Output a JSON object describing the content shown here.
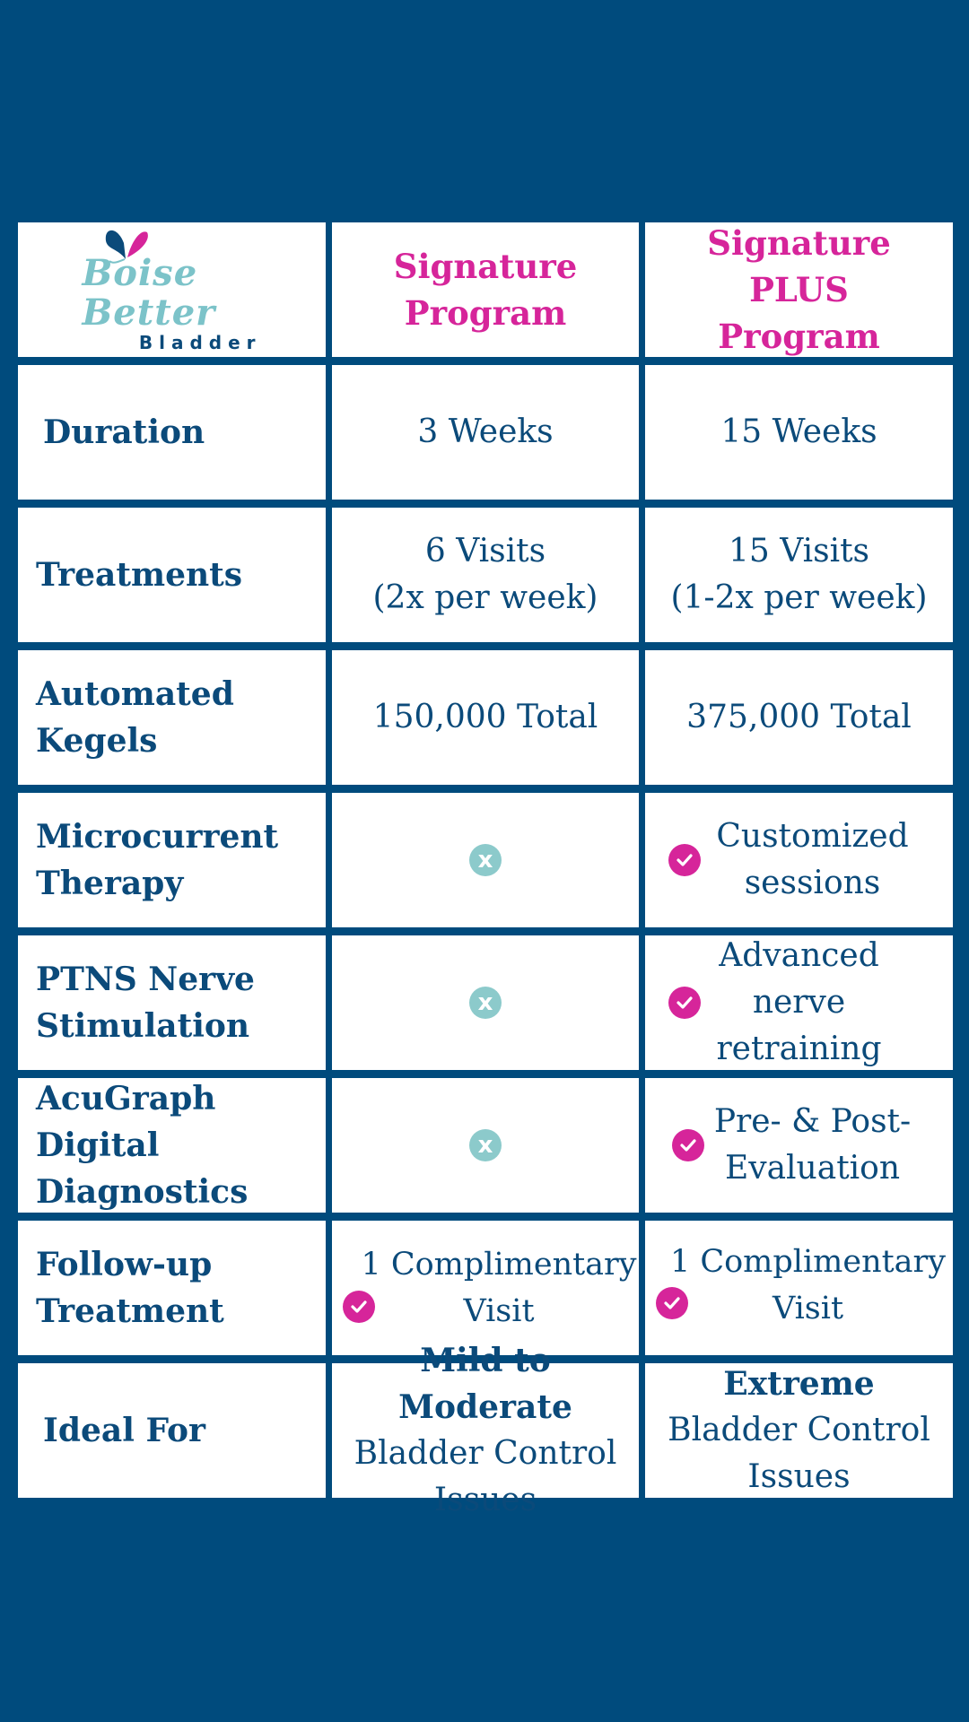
{
  "brand": {
    "logo_script": "Boise Better",
    "logo_sub": "Bladder"
  },
  "headers": {
    "program1": "Signature Program",
    "program2": "Signature PLUS Program"
  },
  "rows": [
    {
      "label": "Duration",
      "p1": "3 Weeks",
      "p2": "15 Weeks"
    },
    {
      "label": "Treatments",
      "p1_line1": "6 Visits",
      "p1_line2": "(2x per week)",
      "p2_line1": "15 Visits",
      "p2_line2": "(1-2x per week)"
    },
    {
      "label_line1": "Automated",
      "label_line2": "Kegels",
      "p1": "150,000 Total",
      "p2": "375,000 Total"
    },
    {
      "label_line1": "Microcurrent",
      "label_line2": "Therapy",
      "p1_icon": "x-icon",
      "p2_icon": "check-icon",
      "p2_line1": "Customized",
      "p2_line2": "sessions"
    },
    {
      "label_line1": "PTNS Nerve",
      "label_line2": "Stimulation",
      "p1_icon": "x-icon",
      "p2_icon": "check-icon",
      "p2_line1": "Advanced",
      "p2_line2": "nerve",
      "p2_line3": "retraining"
    },
    {
      "label_line1": "AcuGraph",
      "label_line2": "Digital",
      "label_line3": "Diagnostics",
      "p1_icon": "x-icon",
      "p2_icon": "check-icon",
      "p2_line1": "Pre- & Post-",
      "p2_line2": "Evaluation"
    },
    {
      "label_line1": "Follow-up",
      "label_line2": "Treatment",
      "p1_icon": "check-icon",
      "p1_line1": "1 Complimentary",
      "p1_line2": "Visit",
      "p2_icon": "check-icon",
      "p2_line1": "1 Complimentary",
      "p2_line2": "Visit"
    },
    {
      "label": "Ideal For",
      "p1_bold": "Mild to Moderate",
      "p1_line2": "Bladder Control",
      "p1_line3": "Issues",
      "p2_bold": "Extreme",
      "p2_line2": "Bladder Control",
      "p2_line3": "Issues"
    }
  ],
  "icons": {
    "x_symbol": "x"
  },
  "colors": {
    "background": "#004b7d",
    "accent": "#d6259a",
    "text": "#0b4a7a",
    "x_icon": "#8ccacb"
  }
}
